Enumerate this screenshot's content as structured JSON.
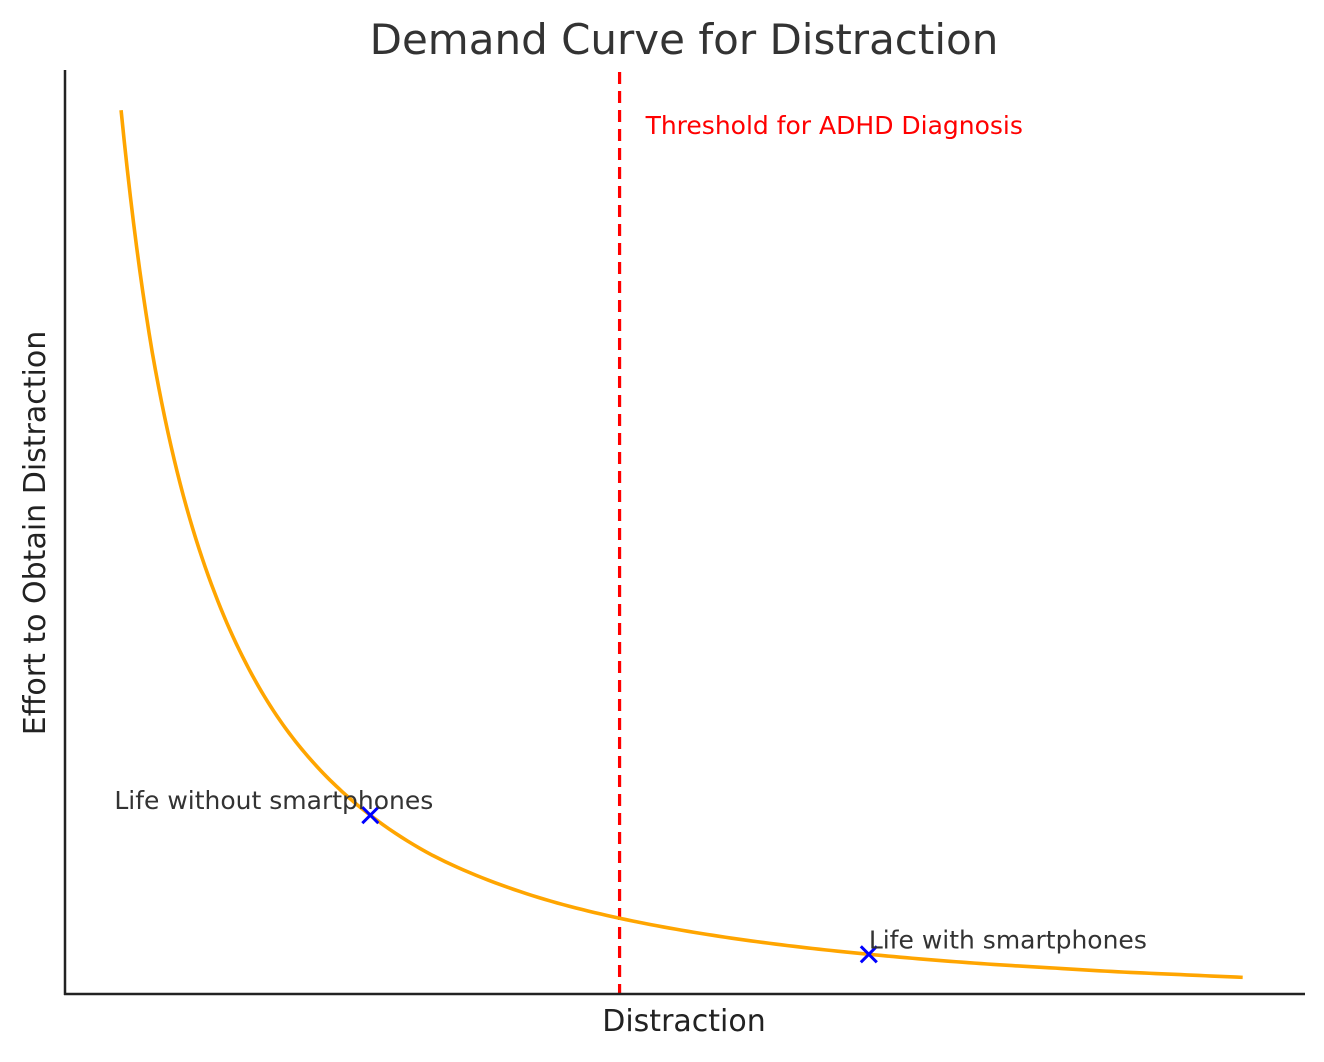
{
  "chart_data": {
    "type": "line",
    "title": "Demand Curve for Distraction",
    "xlabel": "Distraction",
    "ylabel": "Effort to Obtain Distraction",
    "xlim": [
      0.55,
      10.5
    ],
    "ylim": [
      0.05,
      2.05
    ],
    "grid": false,
    "ticks": false,
    "series": [
      {
        "type": "curve",
        "color": "#FFA500",
        "x": [
          1,
          1.25,
          1.5,
          1.75,
          2,
          2.25,
          2.5,
          2.75,
          3,
          3.5,
          4,
          4.5,
          5,
          5.5,
          6,
          6.5,
          7,
          7.5,
          8,
          8.5,
          9,
          9.5,
          10
        ],
        "y": [
          1.963,
          1.439,
          1.128,
          0.919,
          0.767,
          0.652,
          0.564,
          0.494,
          0.437,
          0.35,
          0.291,
          0.247,
          0.214,
          0.188,
          0.167,
          0.15,
          0.136,
          0.124,
          0.114,
          0.106,
          0.098,
          0.092,
          0.086
        ]
      }
    ],
    "threshold": {
      "x": 5,
      "color": "#FF0000",
      "label": "Threshold for ADHD Diagnosis"
    },
    "points": [
      {
        "x": 3,
        "y": 0.437,
        "label": "Life without smartphones",
        "color": "#0000FF",
        "marker": "x"
      },
      {
        "x": 7,
        "y": 0.136,
        "label": "Life with smartphones",
        "color": "#0000FF",
        "marker": "x"
      }
    ]
  }
}
